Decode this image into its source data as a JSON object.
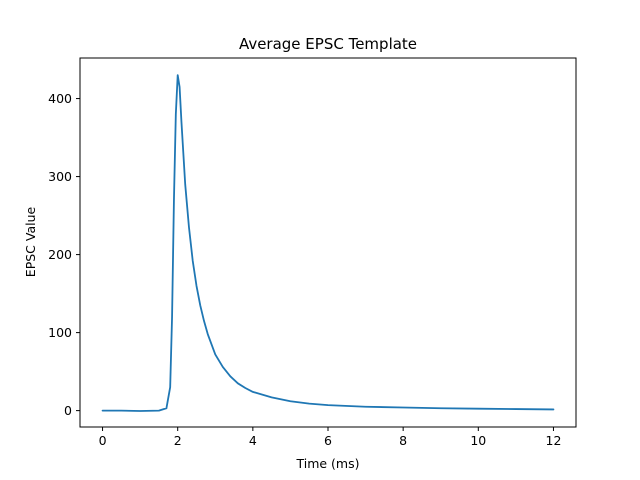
{
  "chart_data": {
    "type": "line",
    "title": "Average EPSC Template",
    "xlabel": "Time (ms)",
    "ylabel": "EPSC Value",
    "xlim": [
      -0.6,
      12.6
    ],
    "ylim": [
      -21,
      452
    ],
    "xticks": [
      0,
      2,
      4,
      6,
      8,
      10,
      12
    ],
    "yticks": [
      0,
      100,
      200,
      300,
      400
    ],
    "grid": false,
    "legend": "none",
    "series": [
      {
        "color": "#1f77b4",
        "x": [
          0,
          0.5,
          1.0,
          1.5,
          1.7,
          1.8,
          1.85,
          1.9,
          1.95,
          2.0,
          2.05,
          2.1,
          2.15,
          2.2,
          2.3,
          2.4,
          2.5,
          2.6,
          2.7,
          2.8,
          3.0,
          3.2,
          3.4,
          3.6,
          3.8,
          4.0,
          4.5,
          5.0,
          5.5,
          6.0,
          7.0,
          8.0,
          9.0,
          10.0,
          11.0,
          12.0
        ],
        "y": [
          0,
          0,
          -0.5,
          0,
          3,
          30,
          120,
          270,
          380,
          430,
          415,
          370,
          330,
          290,
          235,
          192,
          160,
          135,
          115,
          98,
          72,
          56,
          44,
          35,
          29,
          24,
          17,
          12,
          9,
          7,
          5,
          4,
          3,
          2.5,
          2,
          1.5
        ]
      }
    ]
  }
}
